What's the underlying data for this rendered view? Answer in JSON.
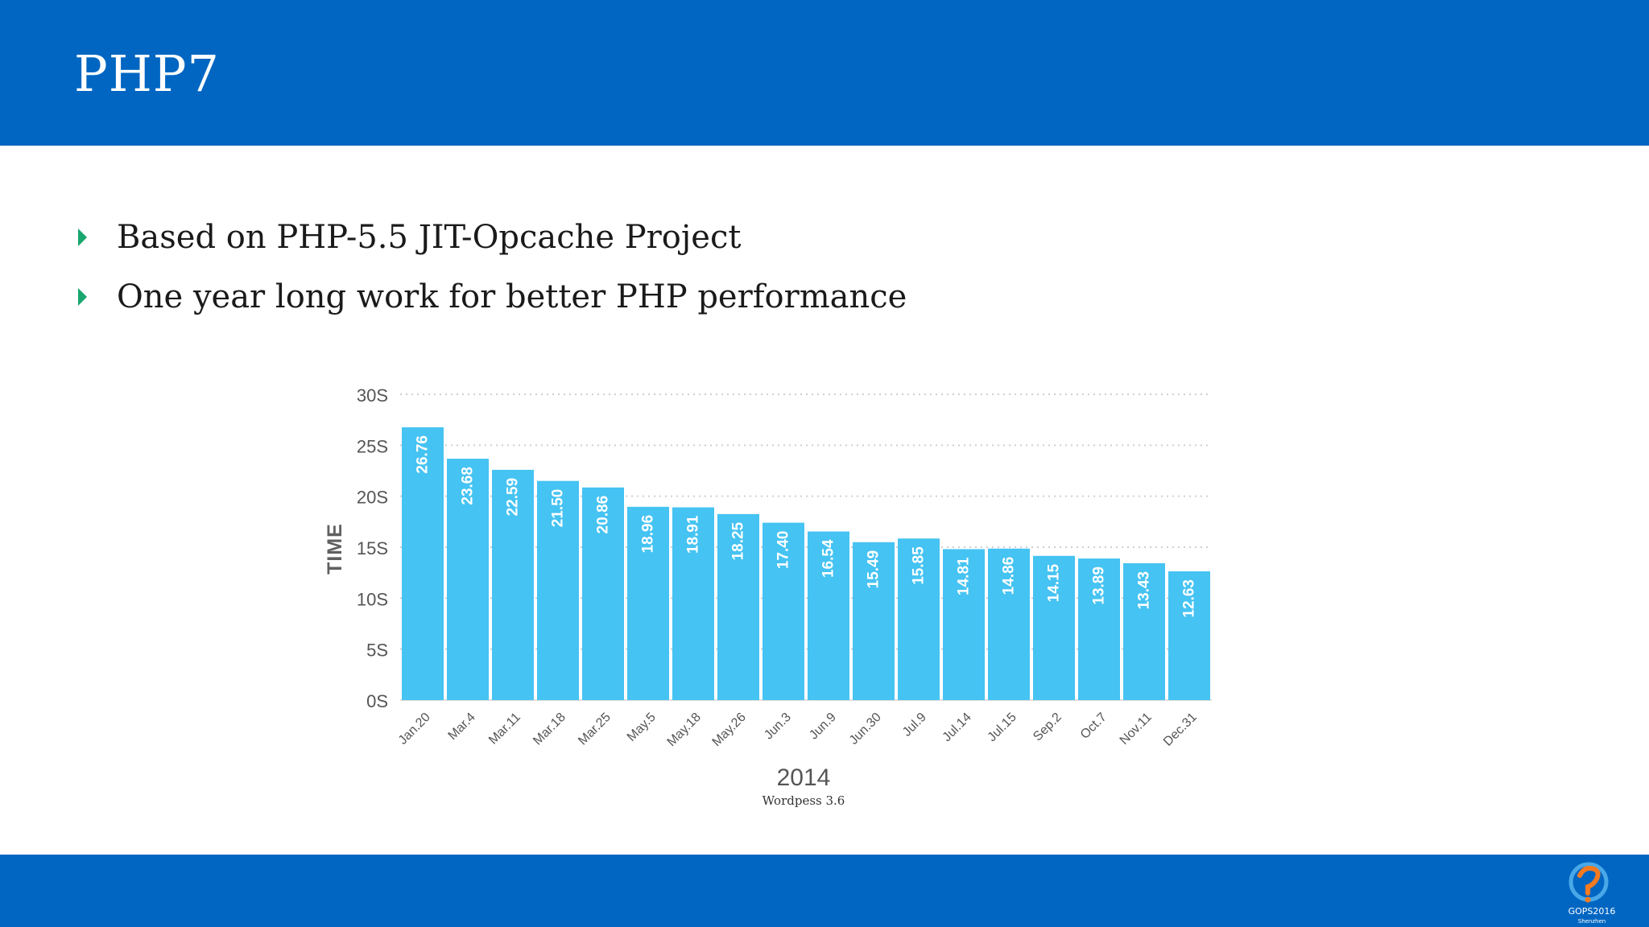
{
  "slide": {
    "title": "PHP7",
    "bullets": [
      "Based on PHP-5.5 JIT-Opcache Project",
      "One year long work for better PHP performance"
    ]
  },
  "colors": {
    "header": "#0066c2",
    "bar": "#45c3f2",
    "bar_label": "#ffffff",
    "axis_text": "#555555",
    "bullet": "#1aa66f"
  },
  "chart_data": {
    "type": "bar",
    "orientation": "vertical",
    "ylabel": "TIME",
    "xlabel": "2014",
    "subtitle": "Wordpess 3.6",
    "ylim": [
      0,
      30
    ],
    "yticks": [
      {
        "value": 0,
        "label": "0S"
      },
      {
        "value": 5,
        "label": "5S"
      },
      {
        "value": 10,
        "label": "10S"
      },
      {
        "value": 15,
        "label": "15S"
      },
      {
        "value": 20,
        "label": "20S"
      },
      {
        "value": 25,
        "label": "25S"
      },
      {
        "value": 30,
        "label": "30S"
      }
    ],
    "grid": true,
    "categories": [
      "Jan.20",
      "Mar.4",
      "Mar.11",
      "Mar.18",
      "Mar.25",
      "May.5",
      "May.18",
      "May.26",
      "Jun.3",
      "Jun.9",
      "Jun.30",
      "Jul.9",
      "Jul.14",
      "Jul.15",
      "Sep.2",
      "Oct.7",
      "Nov.11",
      "Dec.31"
    ],
    "values": [
      26.76,
      23.68,
      22.59,
      21.5,
      20.86,
      18.96,
      18.91,
      18.25,
      17.4,
      16.54,
      15.49,
      15.85,
      14.81,
      14.86,
      14.15,
      13.89,
      13.43,
      12.63
    ],
    "value_labels": [
      "26.76",
      "23.68",
      "22.59",
      "21.50",
      "20.86",
      "18.96",
      "18.91",
      "18.25",
      "17.40",
      "16.54",
      "15.49",
      "15.85",
      "14.81",
      "14.86",
      "14.15",
      "13.89",
      "13.43",
      "12.63"
    ]
  },
  "footer": {
    "logo_text": "GOPS2016",
    "logo_sub": "Shenzhen"
  }
}
